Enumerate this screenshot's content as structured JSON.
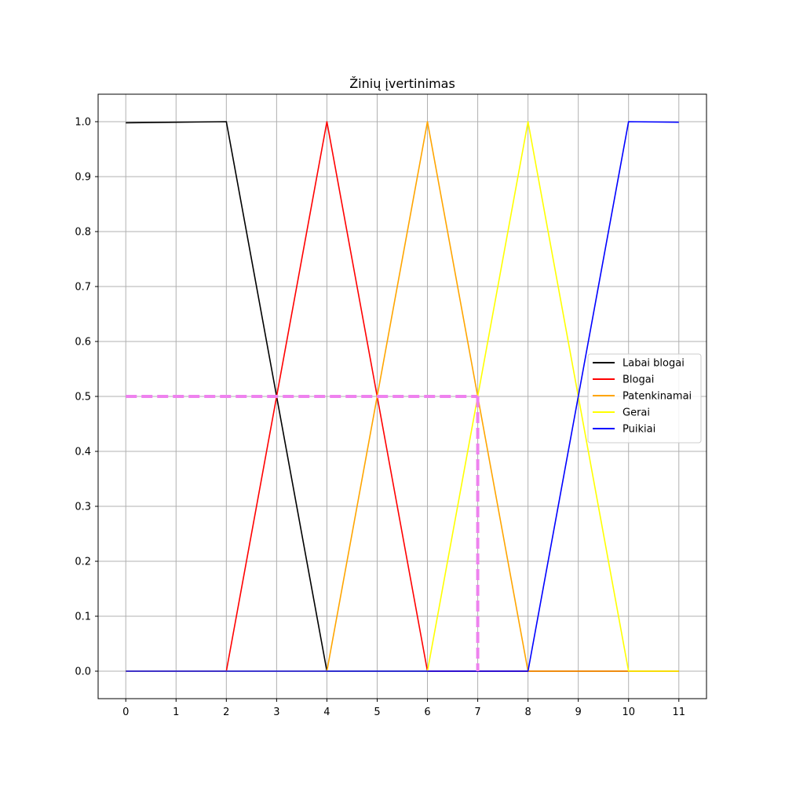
{
  "chart_data": {
    "type": "line",
    "title": "Žinių įvertinimas",
    "xlabel": "",
    "ylabel": "",
    "xlim": [
      -0.55,
      11.55
    ],
    "ylim": [
      -0.05,
      1.05
    ],
    "xticks": [
      0,
      1,
      2,
      3,
      4,
      5,
      6,
      7,
      8,
      9,
      10,
      11
    ],
    "yticks": [
      "0.0",
      "0.1",
      "0.2",
      "0.3",
      "0.4",
      "0.5",
      "0.6",
      "0.7",
      "0.8",
      "0.9",
      "1.0"
    ],
    "grid": true,
    "legend_position": "center-right",
    "series": [
      {
        "name": "Labai blogai",
        "color": "#000000",
        "x": [
          0,
          1,
          2,
          3,
          4,
          5,
          6,
          7,
          8,
          9,
          10,
          11
        ],
        "y": [
          0.998,
          0.999,
          1.0,
          0.5,
          0.0,
          0.0,
          0.0,
          0.0,
          0.0,
          0.0,
          0.0,
          0.0
        ]
      },
      {
        "name": "Blogai",
        "color": "#ff0000",
        "x": [
          0,
          1,
          2,
          3,
          4,
          5,
          6,
          7,
          8,
          9,
          10,
          11
        ],
        "y": [
          0.0,
          0.0,
          0.0,
          0.5,
          1.0,
          0.5,
          0.0,
          0.0,
          0.0,
          0.0,
          0.0,
          0.0
        ]
      },
      {
        "name": "Patenkinamai",
        "color": "#ffa500",
        "x": [
          0,
          1,
          2,
          3,
          4,
          5,
          6,
          7,
          8,
          9,
          10,
          11
        ],
        "y": [
          0.0,
          0.0,
          0.0,
          0.0,
          0.0,
          0.5,
          1.0,
          0.5,
          0.0,
          0.0,
          0.0,
          0.0
        ]
      },
      {
        "name": "Gerai",
        "color": "#ffff00",
        "x": [
          0,
          1,
          2,
          3,
          4,
          5,
          6,
          7,
          8,
          9,
          10,
          11
        ],
        "y": [
          0.0,
          0.0,
          0.0,
          0.0,
          0.0,
          0.0,
          0.0,
          0.5,
          1.0,
          0.5,
          0.0,
          0.0
        ]
      },
      {
        "name": "Puikiai",
        "color": "#0000ff",
        "x": [
          0,
          1,
          2,
          3,
          4,
          5,
          6,
          7,
          8,
          9,
          10,
          11
        ],
        "y": [
          0.0,
          0.0,
          0.0,
          0.0,
          0.0,
          0.0,
          0.0,
          0.0,
          0.0,
          0.5,
          1.0,
          0.999
        ]
      }
    ],
    "annotation": {
      "color": "#ee82ee",
      "style": "dashed",
      "horizontal": {
        "x": [
          0,
          7
        ],
        "y": 0.5
      },
      "vertical": {
        "x": 7,
        "y": [
          0,
          0.5
        ]
      }
    }
  }
}
